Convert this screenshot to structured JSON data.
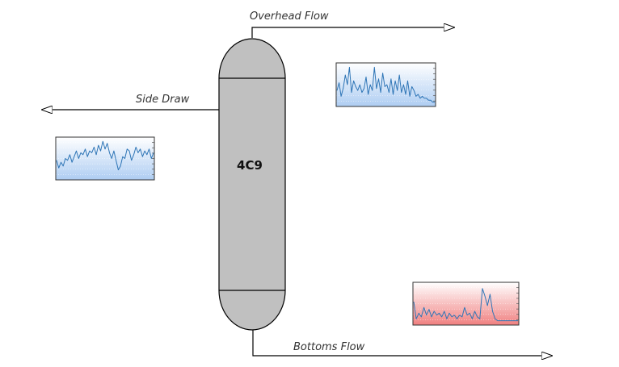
{
  "column": {
    "label": "4C9",
    "body_color": "#c0c0c0",
    "outline_color": "#000000"
  },
  "streams": {
    "overhead": {
      "label": "Overhead Flow"
    },
    "side_draw": {
      "label": "Side Draw"
    },
    "bottoms": {
      "label": "Bottoms Flow"
    }
  },
  "trends": {
    "side_draw": {
      "line_color": "#2e75b6",
      "fill_top": "#ffffff",
      "fill_bottom": "#aecdf2",
      "values": [
        0.45,
        0.25,
        0.4,
        0.3,
        0.5,
        0.45,
        0.6,
        0.4,
        0.55,
        0.7,
        0.5,
        0.65,
        0.6,
        0.75,
        0.55,
        0.7,
        0.65,
        0.8,
        0.6,
        0.85,
        0.7,
        0.95,
        0.75,
        0.9,
        0.65,
        0.5,
        0.7,
        0.45,
        0.2,
        0.3,
        0.55,
        0.5,
        0.75,
        0.7,
        0.45,
        0.6,
        0.8,
        0.65,
        0.75,
        0.55,
        0.7,
        0.6,
        0.75,
        0.5,
        0.65
      ]
    },
    "overhead": {
      "line_color": "#2e75b6",
      "fill_top": "#ffffff",
      "fill_bottom": "#aecdf2",
      "values": [
        0.35,
        0.55,
        0.2,
        0.4,
        0.75,
        0.5,
        0.95,
        0.3,
        0.6,
        0.45,
        0.35,
        0.5,
        0.3,
        0.4,
        0.7,
        0.25,
        0.5,
        0.35,
        0.95,
        0.4,
        0.65,
        0.3,
        0.8,
        0.45,
        0.5,
        0.3,
        0.65,
        0.25,
        0.6,
        0.35,
        0.75,
        0.3,
        0.5,
        0.25,
        0.6,
        0.2,
        0.45,
        0.35,
        0.2,
        0.25,
        0.15,
        0.2,
        0.15,
        0.15,
        0.1,
        0.1,
        0.05,
        0.05
      ]
    },
    "bottoms": {
      "line_color": "#2e75b6",
      "fill_top": "#ffffff",
      "fill_bottom": "#f08080",
      "values": [
        0.55,
        0.1,
        0.25,
        0.15,
        0.4,
        0.2,
        0.35,
        0.15,
        0.3,
        0.2,
        0.25,
        0.15,
        0.3,
        0.1,
        0.25,
        0.15,
        0.2,
        0.1,
        0.2,
        0.15,
        0.4,
        0.2,
        0.25,
        0.1,
        0.3,
        0.15,
        0.1,
        0.9,
        0.7,
        0.45,
        0.75,
        0.3,
        0.1,
        0.05,
        0.05,
        0.05,
        0.05,
        0.05,
        0.05,
        0.05,
        0.05,
        0.05
      ]
    }
  }
}
